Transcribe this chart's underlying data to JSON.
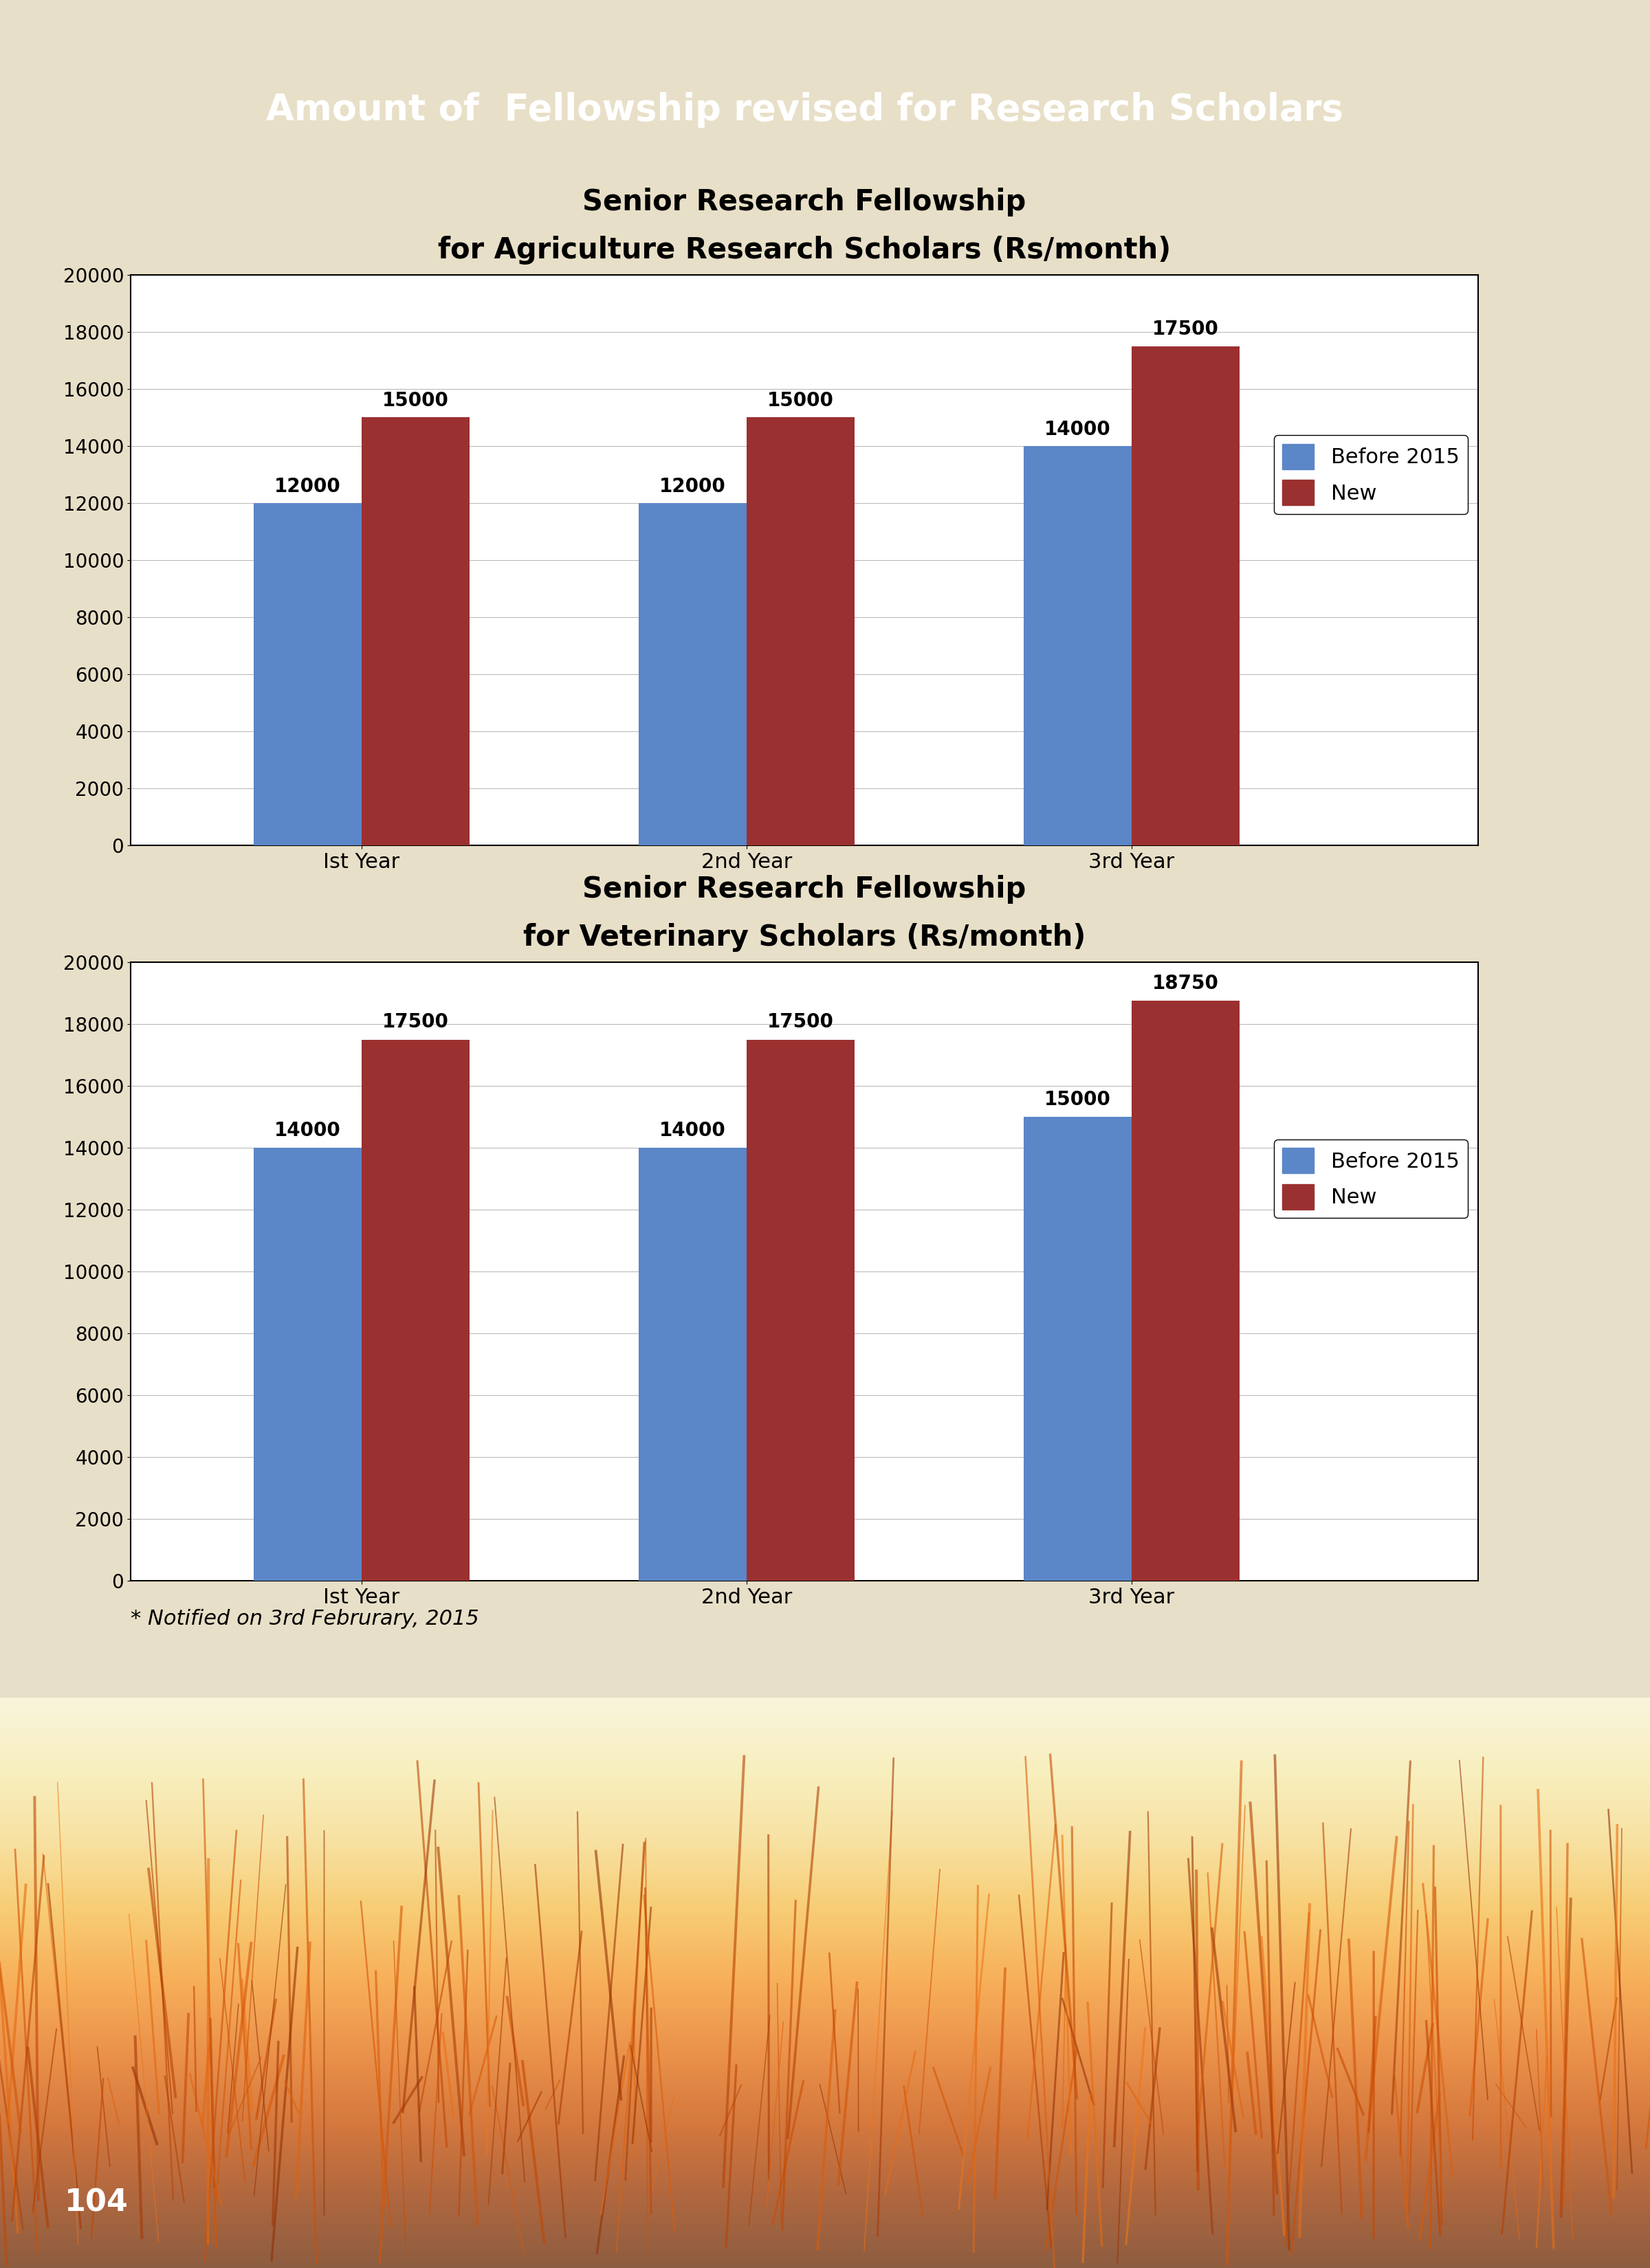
{
  "title_banner": "Amount of  Fellowship revised for Research Scholars",
  "title_banner_bg": "#1a7a3c",
  "title_banner_text_color": "#ffffff",
  "bg_color": "#e8dfc8",
  "chart1_title_line1": "Senior Research Fellowship",
  "chart1_title_line2": "for Agriculture Research Scholars (Rs/month)",
  "chart1_categories": [
    "Ist Year",
    "2nd Year",
    "3rd Year"
  ],
  "chart1_before": [
    12000,
    12000,
    14000
  ],
  "chart1_new": [
    15000,
    15000,
    17500
  ],
  "chart1_ylim": [
    0,
    20000
  ],
  "chart1_yticks": [
    0,
    2000,
    4000,
    6000,
    8000,
    10000,
    12000,
    14000,
    16000,
    18000,
    20000
  ],
  "chart2_title_line1": "Senior Research Fellowship",
  "chart2_title_line2": "for Veterinary Scholars (Rs/month)",
  "chart2_categories": [
    "Ist Year",
    "2nd Year",
    "3rd Year"
  ],
  "chart2_before": [
    14000,
    14000,
    15000
  ],
  "chart2_new": [
    17500,
    17500,
    18750
  ],
  "chart2_ylim": [
    0,
    20000
  ],
  "chart2_yticks": [
    0,
    2000,
    4000,
    6000,
    8000,
    10000,
    12000,
    14000,
    16000,
    18000,
    20000
  ],
  "bar_before_color": "#5b86c8",
  "bar_new_color": "#9b3030",
  "legend_before": "Before 2015",
  "legend_new": "New",
  "footnote": "* Notified on 3rd Februrary, 2015",
  "page_number": "104",
  "page_number_bg": "#e07830"
}
